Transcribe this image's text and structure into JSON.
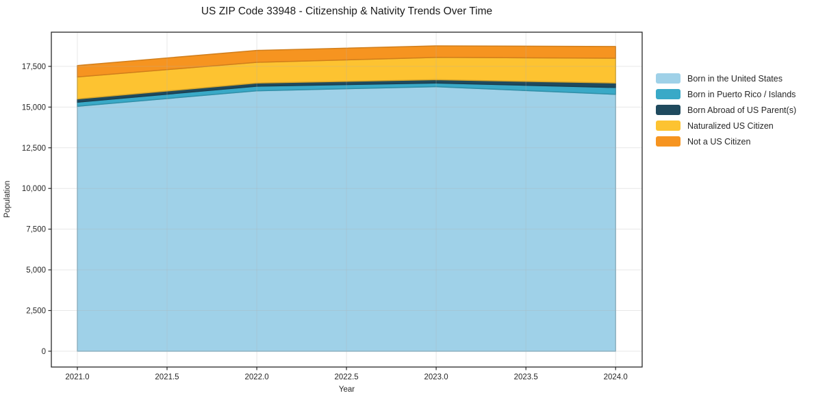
{
  "title": "US ZIP Code 33948 - Citizenship & Nativity Trends Over Time",
  "axes": {
    "xlabel": "Year",
    "ylabel": "Population",
    "xlim": [
      2020.855,
      2024.148
    ],
    "ylim": [
      -970,
      19600
    ],
    "x_ticks": [
      2021.0,
      2021.5,
      2022.0,
      2022.5,
      2023.0,
      2023.5,
      2024.0
    ],
    "x_tick_labels": [
      "2021.0",
      "2021.5",
      "2022.0",
      "2022.5",
      "2023.0",
      "2023.5",
      "2024.0"
    ],
    "y_ticks": [
      0,
      2500,
      5000,
      7500,
      10000,
      12500,
      15000,
      17500
    ],
    "y_tick_labels": [
      "0",
      "2,500",
      "5,000",
      "7,500",
      "10,000",
      "12,500",
      "15,000",
      "17,500"
    ],
    "grid": true,
    "grid_color": "#b0b0b0",
    "spine_color": "#262626"
  },
  "chart_data": {
    "type": "area",
    "stacked": true,
    "title": "US ZIP Code 33948 - Citizenship & Nativity Trends Over Time",
    "xlabel": "Year",
    "ylabel": "Population",
    "x": [
      2021,
      2022,
      2023,
      2024
    ],
    "series": [
      {
        "id": "born-in-us",
        "name": "Born in the United States",
        "color": "#9FD1E8",
        "values": [
          15050,
          16000,
          16250,
          15780
        ]
      },
      {
        "id": "born-in-puerto-rico",
        "name": "Born in Puerto Rico / Islands",
        "color": "#39A9C7",
        "values": [
          250,
          280,
          230,
          420
        ]
      },
      {
        "id": "born-abroad-us-parents",
        "name": "Born Abroad of US Parent(s)",
        "color": "#1F4A5E",
        "values": [
          200,
          200,
          200,
          280
        ]
      },
      {
        "id": "naturalized-citizen",
        "name": "Naturalized US Citizen",
        "color": "#FDC331",
        "values": [
          1350,
          1270,
          1370,
          1520
        ]
      },
      {
        "id": "not-a-citizen",
        "name": "Not a US Citizen",
        "color": "#F69420",
        "values": [
          700,
          730,
          710,
          720
        ]
      }
    ],
    "legend_position": "right-outside"
  },
  "legend": {
    "entries": [
      {
        "label": "Born in the United States",
        "color": "#9FD1E8"
      },
      {
        "label": "Born in Puerto Rico / Islands",
        "color": "#39A9C7"
      },
      {
        "label": "Born Abroad of US Parent(s)",
        "color": "#1F4A5E"
      },
      {
        "label": "Naturalized US Citizen",
        "color": "#FDC331"
      },
      {
        "label": "Not a US Citizen",
        "color": "#F69420"
      }
    ]
  }
}
